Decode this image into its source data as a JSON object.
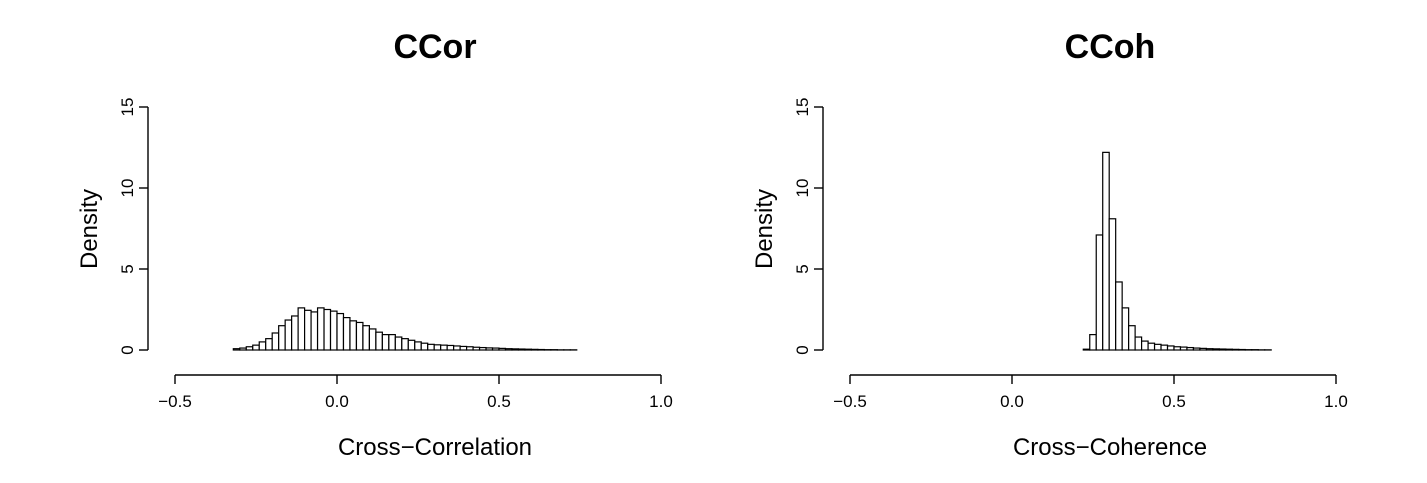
{
  "chart_data": [
    {
      "type": "bar",
      "subtype": "histogram",
      "title": "CCor",
      "xlabel": "Cross−Correlation",
      "ylabel": "Density",
      "xlim": [
        -0.55,
        0.95
      ],
      "ylim": [
        0,
        15
      ],
      "xticks": [
        -0.5,
        0.0,
        0.5,
        1.0
      ],
      "xtick_labels": [
        "−0.5",
        "0.0",
        "0.5",
        "1.0"
      ],
      "yticks": [
        0,
        5,
        10,
        15
      ],
      "ytick_labels": [
        "0",
        "5",
        "10",
        "15"
      ],
      "bin_width": 0.02,
      "bins_start": -0.54,
      "values": [
        0,
        0,
        0,
        0,
        0,
        0,
        0,
        0,
        0,
        0,
        0,
        0.08,
        0.12,
        0.2,
        0.3,
        0.5,
        0.7,
        1.05,
        1.5,
        1.85,
        2.1,
        2.6,
        2.45,
        2.35,
        2.6,
        2.5,
        2.4,
        2.25,
        2.0,
        1.8,
        1.7,
        1.5,
        1.3,
        1.1,
        0.95,
        0.95,
        0.8,
        0.7,
        0.6,
        0.5,
        0.42,
        0.35,
        0.32,
        0.3,
        0.28,
        0.25,
        0.22,
        0.2,
        0.17,
        0.15,
        0.13,
        0.12,
        0.1,
        0.08,
        0.07,
        0.06,
        0.05,
        0.04,
        0.03,
        0.02,
        0.02,
        0.01,
        0.01,
        0.01,
        0,
        0,
        0,
        0,
        0,
        0,
        0,
        0,
        0,
        0,
        0
      ]
    },
    {
      "type": "bar",
      "subtype": "histogram",
      "title": "CCoh",
      "xlabel": "Cross−Coherence",
      "ylabel": "Density",
      "xlim": [
        -0.55,
        0.95
      ],
      "ylim": [
        0,
        15
      ],
      "xticks": [
        -0.5,
        0.0,
        0.5,
        1.0
      ],
      "xtick_labels": [
        "−0.5",
        "0.0",
        "0.5",
        "1.0"
      ],
      "yticks": [
        0,
        5,
        10,
        15
      ],
      "ytick_labels": [
        "0",
        "5",
        "10",
        "15"
      ],
      "bin_width": 0.02,
      "bins_start": -0.54,
      "values": [
        0,
        0,
        0,
        0,
        0,
        0,
        0,
        0,
        0,
        0,
        0,
        0,
        0,
        0,
        0,
        0,
        0,
        0,
        0,
        0,
        0,
        0,
        0,
        0,
        0,
        0,
        0,
        0,
        0,
        0,
        0,
        0,
        0,
        0,
        0,
        0,
        0,
        0,
        0.05,
        0.95,
        7.1,
        12.2,
        8.1,
        4.2,
        2.6,
        1.5,
        0.8,
        0.55,
        0.42,
        0.35,
        0.3,
        0.25,
        0.2,
        0.18,
        0.15,
        0.12,
        0.1,
        0.08,
        0.07,
        0.06,
        0.05,
        0.04,
        0.03,
        0.02,
        0.02,
        0.01,
        0.01,
        0,
        0,
        0,
        0,
        0,
        0,
        0,
        0
      ]
    }
  ]
}
